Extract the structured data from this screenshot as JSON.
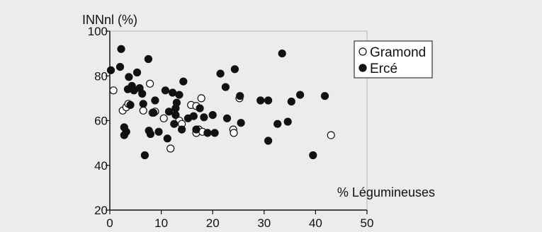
{
  "chart_data": {
    "type": "scatter",
    "title": "",
    "ylabel": "INNnl (%)",
    "xlabel": "% Légumineuses",
    "xlim": [
      0,
      50
    ],
    "ylim": [
      20,
      100
    ],
    "xticks": [
      0,
      10,
      20,
      30,
      40,
      50
    ],
    "yticks": [
      20,
      40,
      60,
      80,
      100
    ],
    "grid": false,
    "legend_position": "top-right",
    "series": [
      {
        "name": "Gramond",
        "marker": "open-circle",
        "color": "#ffffff",
        "stroke": "#111111",
        "points": [
          [
            0.7,
            73.5
          ],
          [
            2.5,
            64.5
          ],
          [
            3.2,
            66.0
          ],
          [
            3.6,
            67.5
          ],
          [
            6.5,
            64.5
          ],
          [
            7.8,
            76.5
          ],
          [
            8.3,
            63.5
          ],
          [
            8.8,
            64.0
          ],
          [
            10.5,
            61.0
          ],
          [
            11.8,
            47.5
          ],
          [
            13.5,
            60.0
          ],
          [
            14.0,
            58.5
          ],
          [
            15.8,
            67.0
          ],
          [
            16.8,
            66.5
          ],
          [
            17.8,
            70.0
          ],
          [
            17.3,
            56.0
          ],
          [
            16.8,
            54.5
          ],
          [
            18.0,
            55.0
          ],
          [
            24.0,
            56.0
          ],
          [
            24.1,
            54.5
          ],
          [
            25.2,
            70.0
          ],
          [
            43.0,
            53.5
          ]
        ]
      },
      {
        "name": "Ercé",
        "marker": "filled-circle",
        "color": "#111111",
        "stroke": "#111111",
        "points": [
          [
            0.2,
            82.5
          ],
          [
            2.2,
            92.0
          ],
          [
            2.0,
            84.0
          ],
          [
            2.8,
            57.0
          ],
          [
            2.8,
            53.5
          ],
          [
            3.2,
            55.0
          ],
          [
            3.5,
            74.0
          ],
          [
            3.7,
            79.5
          ],
          [
            4.0,
            67.0
          ],
          [
            4.3,
            75.5
          ],
          [
            4.7,
            73.5
          ],
          [
            5.3,
            81.5
          ],
          [
            5.8,
            74.5
          ],
          [
            6.3,
            72.0
          ],
          [
            6.5,
            67.5
          ],
          [
            6.8,
            44.5
          ],
          [
            7.5,
            87.5
          ],
          [
            7.6,
            55.5
          ],
          [
            7.9,
            54.0
          ],
          [
            8.5,
            63.5
          ],
          [
            8.8,
            69.0
          ],
          [
            9.5,
            55.0
          ],
          [
            10.8,
            73.5
          ],
          [
            11.2,
            52.0
          ],
          [
            11.5,
            64.0
          ],
          [
            12.2,
            72.5
          ],
          [
            12.5,
            58.5
          ],
          [
            12.8,
            65.5
          ],
          [
            12.8,
            62.5
          ],
          [
            13.0,
            68.0
          ],
          [
            13.5,
            71.5
          ],
          [
            14.0,
            56.0
          ],
          [
            14.3,
            77.5
          ],
          [
            15.2,
            61.0
          ],
          [
            16.3,
            62.0
          ],
          [
            16.8,
            56.0
          ],
          [
            17.5,
            65.5
          ],
          [
            18.3,
            61.5
          ],
          [
            19.0,
            54.5
          ],
          [
            20.0,
            62.5
          ],
          [
            20.4,
            54.5
          ],
          [
            21.5,
            81.0
          ],
          [
            22.5,
            75.0
          ],
          [
            22.8,
            61.0
          ],
          [
            24.3,
            83.0
          ],
          [
            25.3,
            71.0
          ],
          [
            25.5,
            59.0
          ],
          [
            29.3,
            69.0
          ],
          [
            30.8,
            69.0
          ],
          [
            30.8,
            51.0
          ],
          [
            32.6,
            58.5
          ],
          [
            33.5,
            90.0
          ],
          [
            34.6,
            59.5
          ],
          [
            35.3,
            68.5
          ],
          [
            37.0,
            71.5
          ],
          [
            39.5,
            44.5
          ],
          [
            41.8,
            71.0
          ]
        ]
      }
    ]
  }
}
